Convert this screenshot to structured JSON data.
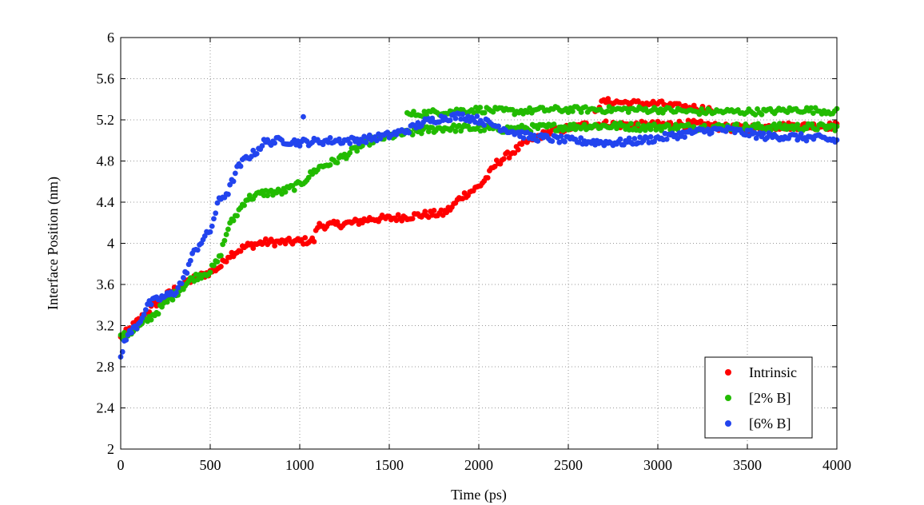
{
  "chart_data": {
    "type": "scatter",
    "title": "",
    "xlabel": "Time (ps)",
    "ylabel": "Interface Position (nm)",
    "xlim": [
      0,
      4000
    ],
    "ylim": [
      2,
      6
    ],
    "xticks": [
      0,
      500,
      1000,
      1500,
      2000,
      2500,
      3000,
      3500,
      4000
    ],
    "yticks": [
      2,
      2.4,
      2.8,
      3.2,
      3.6,
      4,
      4.4,
      4.8,
      5.2,
      5.6,
      6
    ],
    "grid": true,
    "legend_position": "bottom-right",
    "series": [
      {
        "name": "Intrinsic",
        "color": "#ff0000",
        "key_points": [
          [
            0,
            3.08
          ],
          [
            100,
            3.25
          ],
          [
            200,
            3.42
          ],
          [
            300,
            3.55
          ],
          [
            400,
            3.65
          ],
          [
            500,
            3.72
          ],
          [
            560,
            3.78
          ],
          [
            600,
            3.88
          ],
          [
            700,
            3.97
          ],
          [
            800,
            4.01
          ],
          [
            900,
            4.01
          ],
          [
            1000,
            4.02
          ],
          [
            1080,
            4.03
          ],
          [
            1100,
            4.17
          ],
          [
            1200,
            4.18
          ],
          [
            1300,
            4.2
          ],
          [
            1400,
            4.24
          ],
          [
            1500,
            4.24
          ],
          [
            1600,
            4.26
          ],
          [
            1700,
            4.28
          ],
          [
            1800,
            4.29
          ],
          [
            1850,
            4.35
          ],
          [
            1900,
            4.45
          ],
          [
            2000,
            4.55
          ],
          [
            2050,
            4.65
          ],
          [
            2100,
            4.78
          ],
          [
            2200,
            4.9
          ],
          [
            2300,
            5.02
          ],
          [
            2400,
            5.08
          ],
          [
            2500,
            5.12
          ],
          [
            2600,
            5.15
          ],
          [
            2700,
            5.16
          ],
          [
            2800,
            5.15
          ],
          [
            2900,
            5.15
          ],
          [
            3000,
            5.15
          ],
          [
            3100,
            5.16
          ],
          [
            3200,
            5.16
          ],
          [
            3300,
            5.14
          ],
          [
            3400,
            5.12
          ],
          [
            3500,
            5.12
          ],
          [
            3600,
            5.13
          ],
          [
            3700,
            5.14
          ],
          [
            3800,
            5.14
          ],
          [
            3900,
            5.14
          ],
          [
            4000,
            5.14
          ]
        ],
        "upper_branch": [
          [
            2650,
            5.3
          ],
          [
            2700,
            5.38
          ],
          [
            2800,
            5.37
          ],
          [
            2900,
            5.36
          ],
          [
            3000,
            5.36
          ],
          [
            3100,
            5.33
          ],
          [
            3200,
            5.32
          ],
          [
            3300,
            5.3
          ]
        ]
      },
      {
        "name": "[2% B]",
        "color": "#22bb00",
        "key_points": [
          [
            0,
            3.08
          ],
          [
            100,
            3.18
          ],
          [
            200,
            3.33
          ],
          [
            300,
            3.5
          ],
          [
            400,
            3.66
          ],
          [
            500,
            3.73
          ],
          [
            550,
            3.85
          ],
          [
            600,
            4.15
          ],
          [
            700,
            4.43
          ],
          [
            800,
            4.49
          ],
          [
            900,
            4.5
          ],
          [
            1000,
            4.57
          ],
          [
            1050,
            4.65
          ],
          [
            1100,
            4.73
          ],
          [
            1200,
            4.8
          ],
          [
            1300,
            4.9
          ],
          [
            1400,
            5.0
          ],
          [
            1500,
            5.04
          ],
          [
            1600,
            5.07
          ],
          [
            1700,
            5.1
          ],
          [
            1800,
            5.12
          ],
          [
            1900,
            5.12
          ],
          [
            2000,
            5.12
          ],
          [
            2100,
            5.11
          ],
          [
            2200,
            5.11
          ],
          [
            2300,
            5.12
          ],
          [
            2400,
            5.13
          ],
          [
            2500,
            5.13
          ],
          [
            2600,
            5.14
          ],
          [
            2700,
            5.14
          ],
          [
            2800,
            5.14
          ],
          [
            2900,
            5.13
          ],
          [
            3000,
            5.13
          ],
          [
            3100,
            5.13
          ],
          [
            3200,
            5.13
          ],
          [
            3300,
            5.13
          ],
          [
            3400,
            5.13
          ],
          [
            3500,
            5.13
          ],
          [
            3600,
            5.13
          ],
          [
            3700,
            5.13
          ],
          [
            3800,
            5.13
          ],
          [
            3900,
            5.13
          ],
          [
            4000,
            5.13
          ]
        ],
        "upper_branch": [
          [
            1600,
            5.25
          ],
          [
            1800,
            5.28
          ],
          [
            2000,
            5.3
          ],
          [
            2200,
            5.28
          ],
          [
            2400,
            5.3
          ],
          [
            2600,
            5.3
          ],
          [
            2800,
            5.3
          ],
          [
            3000,
            5.3
          ],
          [
            3200,
            5.28
          ],
          [
            3400,
            5.28
          ],
          [
            3600,
            5.28
          ],
          [
            3800,
            5.3
          ],
          [
            4000,
            5.28
          ]
        ]
      },
      {
        "name": "[6% B]",
        "color": "#2244ee",
        "key_points": [
          [
            0,
            2.88
          ],
          [
            25,
            3.08
          ],
          [
            100,
            3.22
          ],
          [
            150,
            3.4
          ],
          [
            200,
            3.45
          ],
          [
            300,
            3.52
          ],
          [
            350,
            3.65
          ],
          [
            400,
            3.88
          ],
          [
            450,
            4.02
          ],
          [
            500,
            4.12
          ],
          [
            550,
            4.42
          ],
          [
            600,
            4.5
          ],
          [
            650,
            4.72
          ],
          [
            700,
            4.83
          ],
          [
            750,
            4.88
          ],
          [
            800,
            4.98
          ],
          [
            900,
            5.0
          ],
          [
            1000,
            4.98
          ],
          [
            1100,
            4.99
          ],
          [
            1200,
            5.0
          ],
          [
            1300,
            5.0
          ],
          [
            1400,
            5.02
          ],
          [
            1500,
            5.05
          ],
          [
            1600,
            5.1
          ],
          [
            1700,
            5.18
          ],
          [
            1800,
            5.22
          ],
          [
            1900,
            5.24
          ],
          [
            2000,
            5.2
          ],
          [
            2100,
            5.14
          ],
          [
            2200,
            5.08
          ],
          [
            2300,
            5.03
          ],
          [
            2400,
            5.02
          ],
          [
            2500,
            5.0
          ],
          [
            2600,
            4.99
          ],
          [
            2700,
            4.98
          ],
          [
            2800,
            4.98
          ],
          [
            2900,
            5.0
          ],
          [
            3000,
            5.02
          ],
          [
            3100,
            5.05
          ],
          [
            3200,
            5.08
          ],
          [
            3300,
            5.1
          ],
          [
            3400,
            5.1
          ],
          [
            3500,
            5.07
          ],
          [
            3600,
            5.04
          ],
          [
            3700,
            5.04
          ],
          [
            3800,
            5.03
          ],
          [
            3900,
            5.02
          ],
          [
            4000,
            5.0
          ]
        ],
        "outliers": [
          [
            1020,
            5.23
          ]
        ]
      }
    ]
  }
}
